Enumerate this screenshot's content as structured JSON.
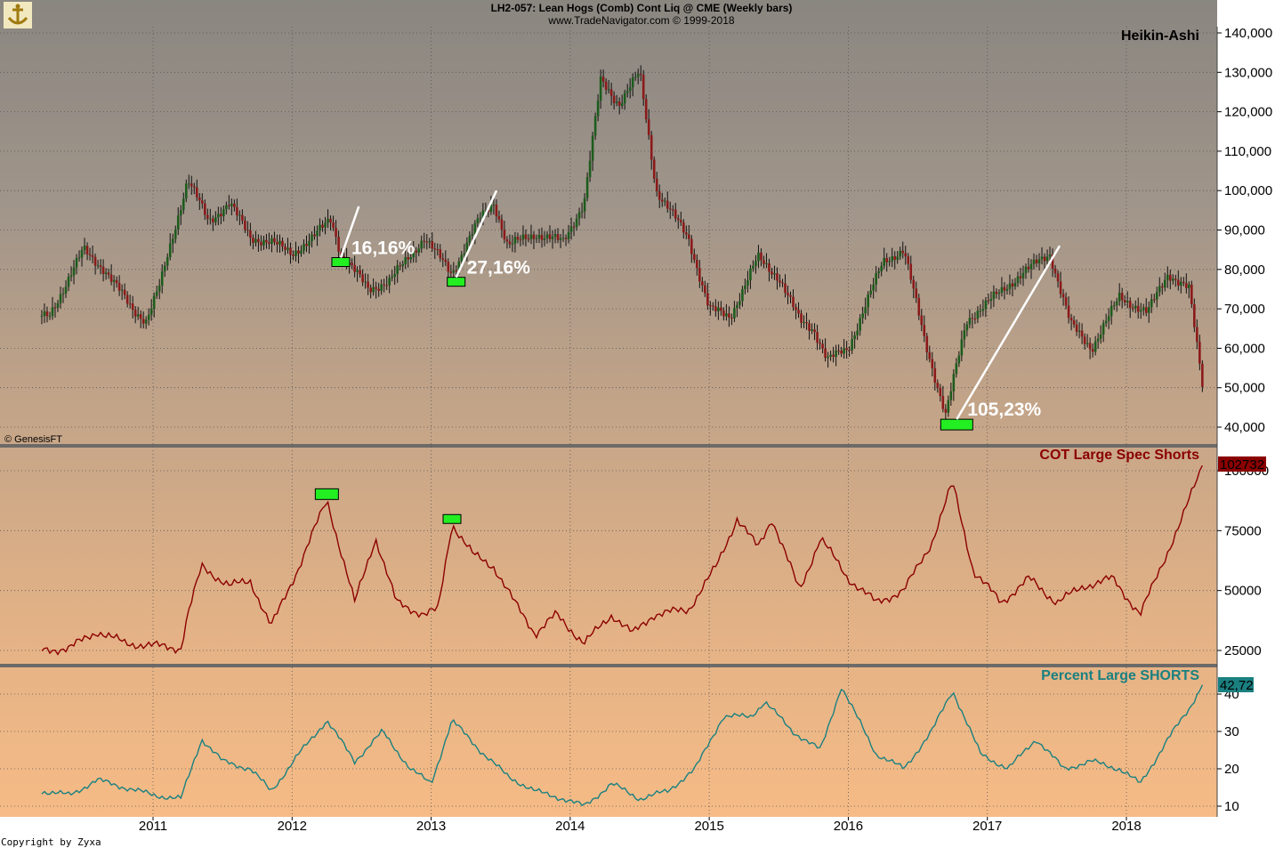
{
  "header": {
    "line1": "LH2-057:  Lean Hogs (Comb) Cont Liq @ CME  (Weekly bars)",
    "line2": "www.TradeNavigator.com © 1999-2018"
  },
  "footer": {
    "vendor": "© GenesisFT",
    "copyright": "Copyright by Zyxa"
  },
  "colors": {
    "bull": "#1d5c1d",
    "bear": "#8b1a1a",
    "cot_line": "#8b0000",
    "pct_line": "#1a8080",
    "marker": "#22ee22",
    "annotation": "#ffffff"
  },
  "chart_data": [
    {
      "type": "candlestick",
      "title": "Heikin-Ashi",
      "x_tick_labels": [
        "2011",
        "2012",
        "2013",
        "2014",
        "2015",
        "2016",
        "2017",
        "2018"
      ],
      "y_tick_labels": [
        "40,000",
        "50,000",
        "60,000",
        "70,000",
        "80,000",
        "90,000",
        "100,000",
        "110,000",
        "120,000",
        "130,000",
        "140,000"
      ],
      "ylim": [
        40000,
        140000
      ],
      "grid": true,
      "price_path": [
        [
          2010.25,
          68000
        ],
        [
          2010.5,
          85000
        ],
        [
          2010.65,
          80000
        ],
        [
          2010.85,
          70000
        ],
        [
          2010.95,
          67000
        ],
        [
          2011.05,
          76000
        ],
        [
          2011.25,
          103000
        ],
        [
          2011.4,
          92000
        ],
        [
          2011.55,
          97000
        ],
        [
          2011.7,
          88000
        ],
        [
          2011.85,
          87000
        ],
        [
          2012.0,
          84000
        ],
        [
          2012.15,
          88000
        ],
        [
          2012.28,
          93000
        ],
        [
          2012.35,
          84000
        ],
        [
          2012.55,
          75000
        ],
        [
          2012.7,
          77000
        ],
        [
          2012.95,
          88000
        ],
        [
          2013.15,
          79000
        ],
        [
          2013.35,
          93000
        ],
        [
          2013.45,
          97000
        ],
        [
          2013.55,
          86000
        ],
        [
          2013.75,
          89000
        ],
        [
          2013.95,
          87000
        ],
        [
          2014.1,
          97000
        ],
        [
          2014.22,
          128000
        ],
        [
          2014.35,
          122000
        ],
        [
          2014.5,
          130000
        ],
        [
          2014.62,
          100000
        ],
        [
          2014.85,
          88000
        ],
        [
          2015.0,
          70000
        ],
        [
          2015.15,
          68000
        ],
        [
          2015.35,
          83000
        ],
        [
          2015.5,
          78000
        ],
        [
          2015.65,
          67000
        ],
        [
          2015.75,
          65000
        ],
        [
          2015.85,
          57000
        ],
        [
          2016.0,
          60000
        ],
        [
          2016.25,
          82000
        ],
        [
          2016.4,
          85000
        ],
        [
          2016.55,
          62000
        ],
        [
          2016.7,
          43000
        ],
        [
          2016.85,
          67000
        ],
        [
          2017.05,
          73000
        ],
        [
          2017.25,
          79000
        ],
        [
          2017.45,
          84000
        ],
        [
          2017.6,
          66000
        ],
        [
          2017.75,
          60000
        ],
        [
          2017.95,
          73000
        ],
        [
          2018.15,
          69000
        ],
        [
          2018.3,
          79000
        ],
        [
          2018.45,
          75000
        ],
        [
          2018.55,
          50000
        ]
      ]
    },
    {
      "type": "line",
      "title": "COT Large Spec Shorts",
      "last_value_label": "102732",
      "y_tick_labels": [
        "25000",
        "50000",
        "75000",
        "100000"
      ],
      "ylim": [
        20000,
        110000
      ],
      "series": [
        {
          "values": [
            [
              2010.2,
              25000
            ],
            [
              2010.4,
              26000
            ],
            [
              2010.6,
              33000
            ],
            [
              2010.8,
              28000
            ],
            [
              2011.0,
              27000
            ],
            [
              2011.2,
              26000
            ],
            [
              2011.25,
              40000
            ],
            [
              2011.35,
              60000
            ],
            [
              2011.55,
              52000
            ],
            [
              2011.7,
              54000
            ],
            [
              2011.85,
              35000
            ],
            [
              2012.05,
              60000
            ],
            [
              2012.25,
              88000
            ],
            [
              2012.45,
              45000
            ],
            [
              2012.6,
              72000
            ],
            [
              2012.75,
              45000
            ],
            [
              2012.95,
              40000
            ],
            [
              2013.05,
              42000
            ],
            [
              2013.15,
              78000
            ],
            [
              2013.3,
              65000
            ],
            [
              2013.45,
              60000
            ],
            [
              2013.6,
              45000
            ],
            [
              2013.75,
              32000
            ],
            [
              2013.9,
              40000
            ],
            [
              2014.1,
              28000
            ],
            [
              2014.3,
              40000
            ],
            [
              2014.45,
              32000
            ],
            [
              2014.6,
              40000
            ],
            [
              2014.85,
              42000
            ],
            [
              2015.05,
              60000
            ],
            [
              2015.2,
              80000
            ],
            [
              2015.35,
              68000
            ],
            [
              2015.45,
              80000
            ],
            [
              2015.65,
              50000
            ],
            [
              2015.8,
              72000
            ],
            [
              2016.0,
              55000
            ],
            [
              2016.2,
              45000
            ],
            [
              2016.4,
              50000
            ],
            [
              2016.6,
              70000
            ],
            [
              2016.75,
              95000
            ],
            [
              2016.9,
              58000
            ],
            [
              2017.1,
              45000
            ],
            [
              2017.3,
              55000
            ],
            [
              2017.5,
              45000
            ],
            [
              2017.7,
              52000
            ],
            [
              2017.9,
              55000
            ],
            [
              2018.1,
              40000
            ],
            [
              2018.25,
              60000
            ],
            [
              2018.4,
              80000
            ],
            [
              2018.55,
              102732
            ]
          ]
        }
      ]
    },
    {
      "type": "line",
      "title": "Percent Large SHORTS",
      "last_value_label": "42,72",
      "y_tick_labels": [
        "10",
        "20",
        "30",
        "40"
      ],
      "ylim": [
        7,
        44
      ],
      "series": [
        {
          "values": [
            [
              2010.2,
              14
            ],
            [
              2010.4,
              13
            ],
            [
              2010.6,
              17
            ],
            [
              2010.8,
              15
            ],
            [
              2011.0,
              13
            ],
            [
              2011.2,
              12
            ],
            [
              2011.35,
              28
            ],
            [
              2011.5,
              22
            ],
            [
              2011.7,
              20
            ],
            [
              2011.85,
              14
            ],
            [
              2012.05,
              24
            ],
            [
              2012.25,
              33
            ],
            [
              2012.45,
              22
            ],
            [
              2012.65,
              30
            ],
            [
              2012.85,
              20
            ],
            [
              2013.0,
              16
            ],
            [
              2013.15,
              33
            ],
            [
              2013.35,
              25
            ],
            [
              2013.55,
              18
            ],
            [
              2013.75,
              14
            ],
            [
              2013.95,
              12
            ],
            [
              2014.1,
              10
            ],
            [
              2014.3,
              16
            ],
            [
              2014.5,
              12
            ],
            [
              2014.7,
              14
            ],
            [
              2014.9,
              20
            ],
            [
              2015.1,
              34
            ],
            [
              2015.3,
              34
            ],
            [
              2015.4,
              38
            ],
            [
              2015.6,
              30
            ],
            [
              2015.8,
              25
            ],
            [
              2015.95,
              42
            ],
            [
              2016.2,
              24
            ],
            [
              2016.4,
              20
            ],
            [
              2016.6,
              30
            ],
            [
              2016.75,
              41
            ],
            [
              2016.95,
              24
            ],
            [
              2017.15,
              20
            ],
            [
              2017.35,
              28
            ],
            [
              2017.55,
              20
            ],
            [
              2017.75,
              22
            ],
            [
              2017.95,
              20
            ],
            [
              2018.1,
              16
            ],
            [
              2018.3,
              28
            ],
            [
              2018.45,
              36
            ],
            [
              2018.55,
              42.72
            ]
          ]
        }
      ]
    }
  ],
  "annotations": [
    {
      "label": "16,16%",
      "from": [
        2012.35,
        83000
      ],
      "to": [
        2012.48,
        96000
      ]
    },
    {
      "label": "27,16%",
      "from": [
        2013.18,
        78000
      ],
      "to": [
        2013.47,
        100000
      ]
    },
    {
      "label": "105,23%",
      "from": [
        2016.78,
        42000
      ],
      "to": [
        2017.52,
        86000
      ]
    }
  ]
}
